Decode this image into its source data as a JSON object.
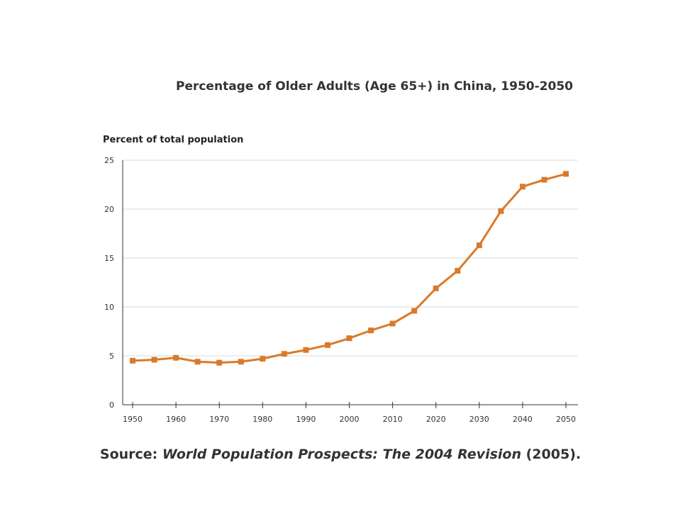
{
  "chart_data": {
    "type": "line",
    "title": "Percentage of Older Adults (Age 65+) in China, 1950-2050",
    "ylabel": "Percent of total population",
    "xlabel": "",
    "ylim": [
      0,
      25
    ],
    "yticks": [
      0,
      5,
      10,
      15,
      20,
      25
    ],
    "xticks": [
      1950,
      1960,
      1970,
      1980,
      1990,
      2000,
      2010,
      2020,
      2030,
      2040,
      2050
    ],
    "grid": true,
    "color": "#d97a2b",
    "series": [
      {
        "x": [
          1950,
          1955,
          1960,
          1965,
          1970,
          1975,
          1980,
          1985,
          1990,
          1995,
          2000,
          2005,
          2010,
          2015,
          2020,
          2025,
          2030,
          2035,
          2040,
          2045,
          2050
        ],
        "values": [
          4.5,
          4.6,
          4.8,
          4.4,
          4.3,
          4.4,
          4.7,
          5.2,
          5.6,
          6.1,
          6.8,
          7.6,
          8.3,
          9.6,
          11.9,
          13.7,
          16.3,
          19.8,
          22.3,
          23.0,
          23.6
        ]
      }
    ]
  },
  "source": {
    "prefix": "Source:",
    "italic": "World Population Prospects: The 2004 Revision",
    "suffix": "(2005)."
  }
}
